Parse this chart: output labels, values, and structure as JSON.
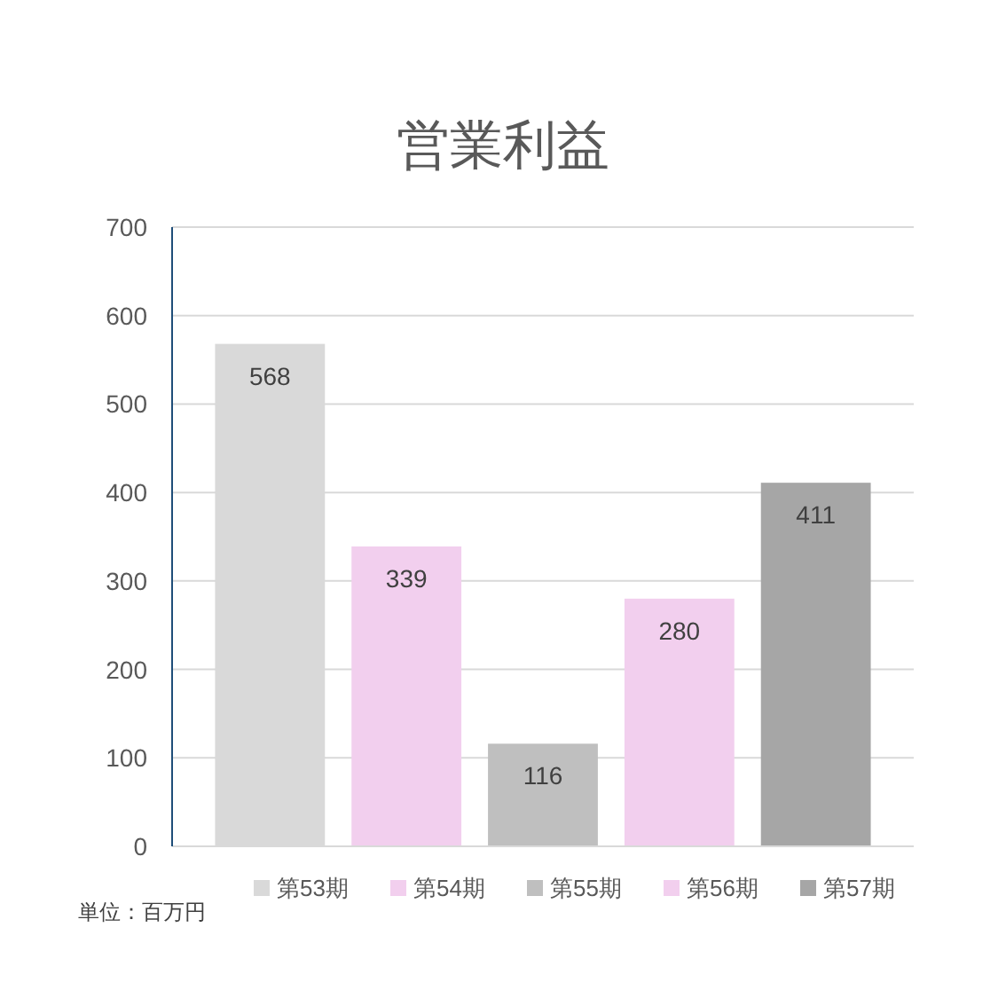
{
  "chart_data": {
    "type": "bar",
    "title": "営業利益",
    "categories": [
      null
    ],
    "series": [
      {
        "name": "第53期",
        "color": "#d9d9d9",
        "values": [
          568
        ]
      },
      {
        "name": "第54期",
        "color": "#f2cfee",
        "values": [
          339
        ]
      },
      {
        "name": "第55期",
        "color": "#bfbfbf",
        "values": [
          116
        ]
      },
      {
        "name": "第56期",
        "color": "#f2cfee",
        "values": [
          280
        ]
      },
      {
        "name": "第57期",
        "color": "#a6a6a6",
        "values": [
          411
        ]
      }
    ],
    "ylim": [
      0,
      700
    ],
    "yticks": [
      0,
      100,
      200,
      300,
      400,
      500,
      600,
      700
    ],
    "grid": "y",
    "legend": "bottom",
    "data_labels": true,
    "tick_labels": "y",
    "annotations": [
      "単位：百万円"
    ]
  }
}
